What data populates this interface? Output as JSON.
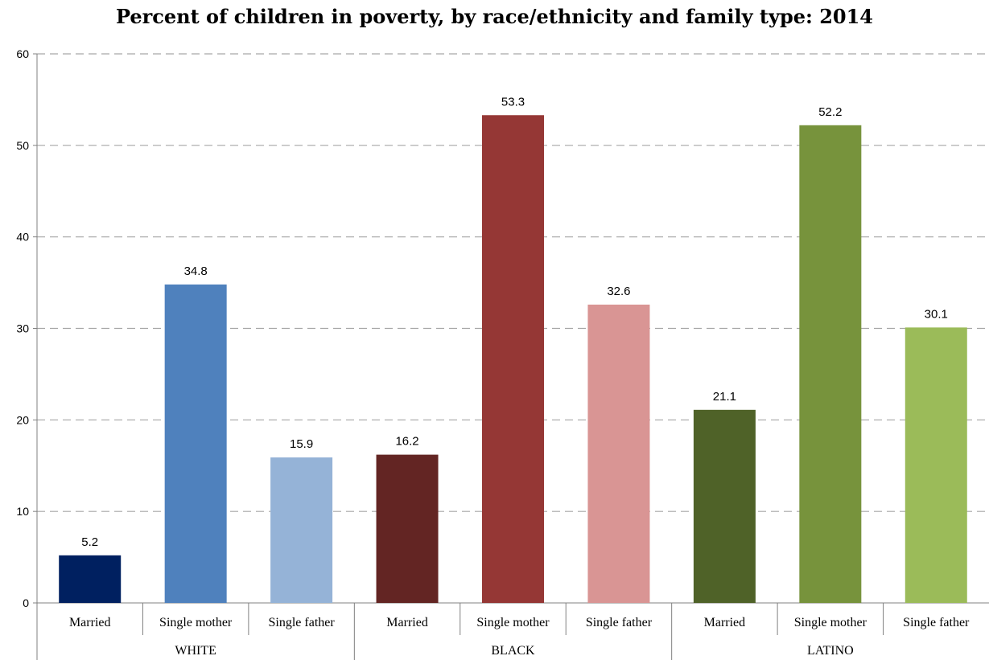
{
  "chart_data": {
    "type": "bar",
    "title": "Percent of children in poverty, by race/ethnicity and family type: 2014",
    "xlabel": "",
    "ylabel": "",
    "ylim": [
      0,
      60
    ],
    "yticks": [
      "0",
      "10",
      "20",
      "30",
      "40",
      "50",
      "60"
    ],
    "grid": true,
    "groups": [
      {
        "name": "WHITE",
        "bars": [
          {
            "category": "Married",
            "value": 5.2,
            "label": "5.2",
            "color": "#002060"
          },
          {
            "category": "Single mother",
            "value": 34.8,
            "label": "34.8",
            "color": "#4f81bd"
          },
          {
            "category": "Single father",
            "value": 15.9,
            "label": "15.9",
            "color": "#95b3d7"
          }
        ]
      },
      {
        "name": "BLACK",
        "bars": [
          {
            "category": "Married",
            "value": 16.2,
            "label": "16.2",
            "color": "#632523"
          },
          {
            "category": "Single mother",
            "value": 53.3,
            "label": "53.3",
            "color": "#953735"
          },
          {
            "category": "Single father",
            "value": 32.6,
            "label": "32.6",
            "color": "#d99594"
          }
        ]
      },
      {
        "name": "LATINO",
        "bars": [
          {
            "category": "Married",
            "value": 21.1,
            "label": "21.1",
            "color": "#4f6228"
          },
          {
            "category": "Single mother",
            "value": 52.2,
            "label": "52.2",
            "color": "#77933c"
          },
          {
            "category": "Single father",
            "value": 30.1,
            "label": "30.1",
            "color": "#9bbb59"
          }
        ]
      }
    ]
  }
}
